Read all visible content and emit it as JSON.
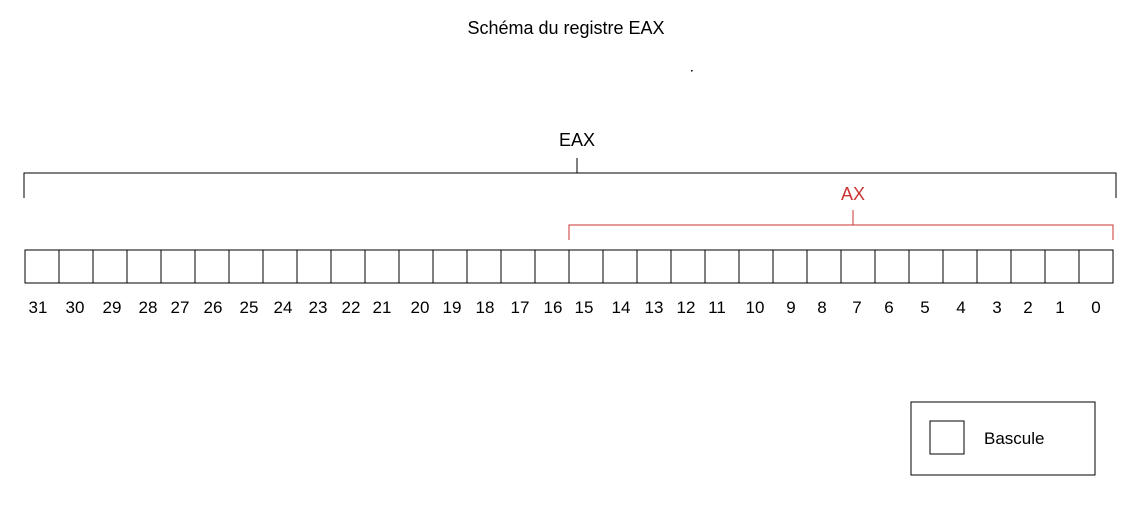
{
  "title": "Schéma du registre EAX",
  "registers": {
    "eax": {
      "label": "EAX",
      "from_bit": 31,
      "to_bit": 0,
      "color": "#000000"
    },
    "ax": {
      "label": "AX",
      "from_bit": 15,
      "to_bit": 0,
      "color": "#cc3333"
    }
  },
  "bits": [
    "31",
    "30",
    "29",
    "28",
    "27",
    "26",
    "25",
    "24",
    "23",
    "22",
    "21",
    "20",
    "19",
    "18",
    "17",
    "16",
    "15",
    "14",
    "13",
    "12",
    "11",
    "10",
    "9",
    "8",
    "7",
    "6",
    "5",
    "4",
    "3",
    "2",
    "1",
    "0"
  ],
  "legend": {
    "label": "Bascule"
  }
}
